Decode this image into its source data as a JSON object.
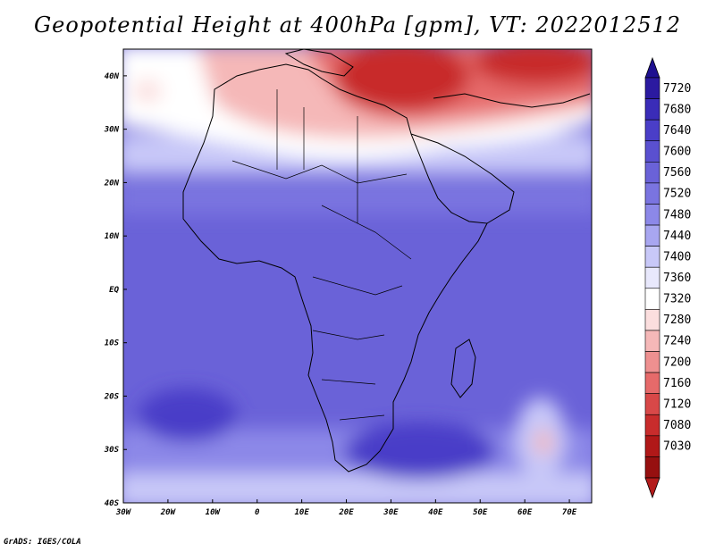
{
  "title": "Geopotential Height at 400hPa [gpm], VT: 2022012512",
  "credit": "GrADS: IGES/COLA",
  "map": {
    "lon_range": [
      -30,
      75
    ],
    "lat_range": [
      -40,
      45
    ],
    "lon_ticks": [
      {
        "value": -30,
        "label": "30W"
      },
      {
        "value": -20,
        "label": "20W"
      },
      {
        "value": -10,
        "label": "10W"
      },
      {
        "value": 0,
        "label": "0"
      },
      {
        "value": 10,
        "label": "10E"
      },
      {
        "value": 20,
        "label": "20E"
      },
      {
        "value": 30,
        "label": "30E"
      },
      {
        "value": 40,
        "label": "40E"
      },
      {
        "value": 50,
        "label": "50E"
      },
      {
        "value": 60,
        "label": "60E"
      },
      {
        "value": 70,
        "label": "70E"
      }
    ],
    "lat_ticks": [
      {
        "value": 40,
        "label": "40N"
      },
      {
        "value": 30,
        "label": "30N"
      },
      {
        "value": 20,
        "label": "20N"
      },
      {
        "value": 10,
        "label": "10N"
      },
      {
        "value": 0,
        "label": "EQ"
      },
      {
        "value": -10,
        "label": "10S"
      },
      {
        "value": -20,
        "label": "20S"
      },
      {
        "value": -30,
        "label": "30S"
      },
      {
        "value": -40,
        "label": "40S"
      }
    ]
  },
  "colorbar": {
    "levels": [
      "7720",
      "7680",
      "7640",
      "7600",
      "7560",
      "7520",
      "7480",
      "7440",
      "7400",
      "7360",
      "7320",
      "7280",
      "7240",
      "7200",
      "7160",
      "7120",
      "7080",
      "7030"
    ],
    "colors": [
      "#2b1aa0",
      "#3a2cb8",
      "#4a3ec8",
      "#5a50d0",
      "#6a62d8",
      "#7a74e0",
      "#8c88e8",
      "#a8a6f0",
      "#c8c8f8",
      "#e8e8fc",
      "#ffffff",
      "#fbdede",
      "#f5b8b8",
      "#ee9090",
      "#e66a6a",
      "#d84848",
      "#c82c2c",
      "#b01818",
      "#961010"
    ],
    "top_color": "#1e1090",
    "bottom_color": "#b31b1b"
  }
}
